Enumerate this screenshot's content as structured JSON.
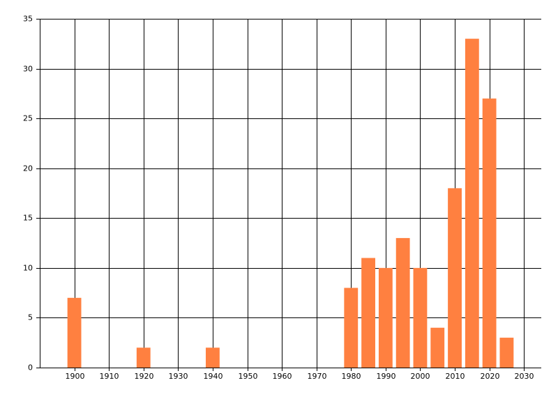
{
  "chart_data": {
    "type": "bar",
    "x": [
      1900,
      1920,
      1940,
      1980,
      1985,
      1990,
      1995,
      2000,
      2005,
      2010,
      2015,
      2020,
      2025
    ],
    "values": [
      7,
      2,
      2,
      8,
      11,
      10,
      13,
      10,
      4,
      18,
      33,
      27,
      3
    ],
    "color": "#ff8040",
    "xlim": [
      1890,
      2035
    ],
    "xticks": [
      1900,
      1910,
      1920,
      1930,
      1940,
      1950,
      1960,
      1970,
      1980,
      1990,
      2000,
      2010,
      2020,
      2030
    ],
    "ylim": [
      0,
      35
    ],
    "yticks": [
      0,
      5,
      10,
      15,
      20,
      25,
      30,
      35
    ],
    "grid": true
  }
}
